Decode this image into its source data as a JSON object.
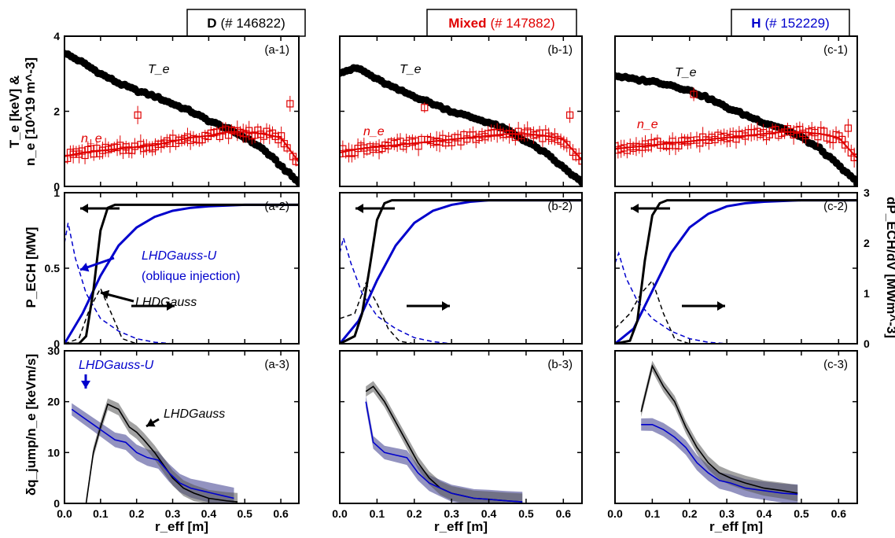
{
  "titles": [
    {
      "species": "D",
      "shot": "(# 146822)",
      "color": "#000000"
    },
    {
      "species": "Mixed",
      "shot": "(# 147882)",
      "color": "#e00000"
    },
    {
      "species": "H",
      "shot": "(# 152229)",
      "color": "#0000cc"
    }
  ],
  "axes": {
    "xlabel": "r_eff [m]",
    "row1_ylabel_line1": "T_e [keV] &",
    "row1_ylabel_line2": "n_e [10^19 m^-3]",
    "row2_ylabel": "P_ECH [MW]",
    "row2_ylabel_right": "dP_ECH/dV [MWm^-3]",
    "row3_ylabel": "δq_jump/n_e [keVm/s]",
    "x_ticks": [
      "0.0",
      "0.1",
      "0.2",
      "0.3",
      "0.4",
      "0.5",
      "0.6"
    ],
    "row1_yticks": [
      "0",
      "2",
      "4"
    ],
    "row2_yticks": [
      "0",
      "0.5",
      "1"
    ],
    "row2_right_yticks": [
      "0",
      "1",
      "2",
      "3"
    ],
    "row3_yticks": [
      "0",
      "10",
      "20",
      "30"
    ]
  },
  "labels": {
    "Te": "T_e",
    "ne": "n_e",
    "lhdgauss": "LHDGauss",
    "lhdgauss_u": "LHDGauss-U",
    "oblique": "(oblique injection)"
  },
  "panel_tags": [
    [
      "(a-1)",
      "(a-2)",
      "(a-3)"
    ],
    [
      "(b-1)",
      "(b-2)",
      "(b-3)"
    ],
    [
      "(c-1)",
      "(c-2)",
      "(c-3)"
    ]
  ],
  "colors": {
    "te": "#000000",
    "ne": "#e00000",
    "lhdgauss": "#000000",
    "lhdgauss_u": "#0000cc",
    "band_blue": "#3a3a8c",
    "band_gray": "#555555"
  },
  "chart_data": [
    {
      "type": "scatter",
      "panel": "a-1",
      "xlim": [
        0,
        0.65
      ],
      "ylim": [
        0,
        4
      ],
      "series": [
        {
          "name": "T_e",
          "x": [
            0.0,
            0.05,
            0.1,
            0.15,
            0.2,
            0.25,
            0.3,
            0.35,
            0.4,
            0.45,
            0.5,
            0.55,
            0.6,
            0.65
          ],
          "y": [
            3.55,
            3.3,
            3.0,
            2.75,
            2.55,
            2.4,
            2.2,
            2.0,
            1.75,
            1.55,
            1.3,
            1.0,
            0.55,
            0.1
          ]
        },
        {
          "name": "n_e",
          "x": [
            0.0,
            0.05,
            0.1,
            0.15,
            0.2,
            0.25,
            0.3,
            0.35,
            0.4,
            0.45,
            0.5,
            0.55,
            0.6,
            0.65
          ],
          "y": [
            0.8,
            0.9,
            0.95,
            1.0,
            1.05,
            1.1,
            1.2,
            1.3,
            1.35,
            1.45,
            1.45,
            1.4,
            1.3,
            0.65
          ]
        }
      ]
    },
    {
      "type": "scatter",
      "panel": "b-1",
      "xlim": [
        0,
        0.65
      ],
      "ylim": [
        0,
        4
      ],
      "series": [
        {
          "name": "T_e",
          "x": [
            0.0,
            0.05,
            0.1,
            0.15,
            0.2,
            0.25,
            0.3,
            0.35,
            0.4,
            0.45,
            0.5,
            0.55,
            0.6,
            0.65
          ],
          "y": [
            3.05,
            3.15,
            2.85,
            2.6,
            2.4,
            2.2,
            2.0,
            1.85,
            1.7,
            1.5,
            1.2,
            0.9,
            0.5,
            0.1
          ]
        },
        {
          "name": "n_e",
          "x": [
            0.0,
            0.05,
            0.1,
            0.15,
            0.2,
            0.25,
            0.3,
            0.35,
            0.4,
            0.45,
            0.5,
            0.55,
            0.6,
            0.65
          ],
          "y": [
            0.9,
            1.0,
            1.05,
            1.1,
            1.15,
            1.2,
            1.25,
            1.3,
            1.35,
            1.4,
            1.4,
            1.35,
            1.25,
            0.7
          ]
        }
      ]
    },
    {
      "type": "scatter",
      "panel": "c-1",
      "xlim": [
        0,
        0.65
      ],
      "ylim": [
        0,
        4
      ],
      "series": [
        {
          "name": "T_e",
          "x": [
            0.0,
            0.05,
            0.1,
            0.15,
            0.2,
            0.25,
            0.3,
            0.35,
            0.4,
            0.45,
            0.5,
            0.55,
            0.6,
            0.65
          ],
          "y": [
            2.95,
            2.85,
            2.8,
            2.7,
            2.55,
            2.35,
            2.1,
            1.9,
            1.7,
            1.55,
            1.3,
            1.0,
            0.55,
            0.1
          ]
        },
        {
          "name": "n_e",
          "x": [
            0.0,
            0.05,
            0.1,
            0.15,
            0.2,
            0.25,
            0.3,
            0.35,
            0.4,
            0.45,
            0.5,
            0.55,
            0.6,
            0.65
          ],
          "y": [
            1.0,
            1.05,
            1.1,
            1.15,
            1.2,
            1.25,
            1.3,
            1.35,
            1.4,
            1.45,
            1.45,
            1.4,
            1.3,
            0.75
          ]
        }
      ]
    },
    {
      "type": "line",
      "panel": "a-2",
      "xlim": [
        0,
        0.65
      ],
      "ylim": [
        0,
        1
      ],
      "y2lim": [
        0,
        3
      ],
      "series": [
        {
          "name": "LHDGauss P_ECH",
          "x": [
            0.0,
            0.04,
            0.06,
            0.08,
            0.1,
            0.12,
            0.14,
            0.2,
            0.65
          ],
          "y": [
            0,
            0,
            0.05,
            0.35,
            0.75,
            0.9,
            0.92,
            0.92,
            0.92
          ]
        },
        {
          "name": "LHDGauss-U P_ECH",
          "x": [
            0.0,
            0.05,
            0.1,
            0.15,
            0.2,
            0.25,
            0.3,
            0.35,
            0.4,
            0.5,
            0.65
          ],
          "y": [
            0,
            0.2,
            0.45,
            0.65,
            0.77,
            0.84,
            0.88,
            0.9,
            0.91,
            0.92,
            0.92
          ]
        },
        {
          "name": "LHDGauss dP/dV",
          "x": [
            0.0,
            0.04,
            0.07,
            0.1,
            0.13,
            0.16,
            0.2
          ],
          "y": [
            0,
            0.1,
            0.7,
            1.1,
            0.6,
            0.1,
            0
          ]
        },
        {
          "name": "LHDGauss-U dP/dV",
          "x": [
            0.0,
            0.01,
            0.03,
            0.06,
            0.1,
            0.15,
            0.2,
            0.25,
            0.3
          ],
          "y": [
            2.0,
            2.4,
            1.7,
            1.0,
            0.5,
            0.25,
            0.1,
            0.03,
            0
          ]
        }
      ]
    },
    {
      "type": "line",
      "panel": "b-2",
      "xlim": [
        0,
        0.65
      ],
      "ylim": [
        0,
        1
      ],
      "y2lim": [
        0,
        3
      ],
      "series": [
        {
          "name": "LHDGauss P_ECH",
          "x": [
            0.0,
            0.04,
            0.06,
            0.08,
            0.1,
            0.12,
            0.14,
            0.2,
            0.65
          ],
          "y": [
            0,
            0.05,
            0.2,
            0.5,
            0.82,
            0.93,
            0.95,
            0.95,
            0.95
          ]
        },
        {
          "name": "LHDGauss-U P_ECH",
          "x": [
            0.0,
            0.05,
            0.1,
            0.15,
            0.2,
            0.25,
            0.3,
            0.35,
            0.4,
            0.5,
            0.65
          ],
          "y": [
            0,
            0.15,
            0.42,
            0.65,
            0.8,
            0.88,
            0.92,
            0.94,
            0.95,
            0.95,
            0.95
          ]
        },
        {
          "name": "LHDGauss dP/dV",
          "x": [
            0.0,
            0.04,
            0.07,
            0.1,
            0.13,
            0.16,
            0.2
          ],
          "y": [
            0.5,
            0.6,
            1.2,
            0.8,
            0.3,
            0.05,
            0
          ]
        },
        {
          "name": "LHDGauss-U dP/dV",
          "x": [
            0.0,
            0.01,
            0.03,
            0.06,
            0.1,
            0.15,
            0.2,
            0.25,
            0.3
          ],
          "y": [
            1.8,
            2.1,
            1.6,
            1.0,
            0.55,
            0.3,
            0.12,
            0.04,
            0
          ]
        }
      ]
    },
    {
      "type": "line",
      "panel": "c-2",
      "xlim": [
        0,
        0.65
      ],
      "ylim": [
        0,
        1
      ],
      "y2lim": [
        0,
        3
      ],
      "series": [
        {
          "name": "LHDGauss P_ECH",
          "x": [
            0.0,
            0.04,
            0.06,
            0.08,
            0.1,
            0.12,
            0.14,
            0.2,
            0.65
          ],
          "y": [
            0,
            0.02,
            0.15,
            0.55,
            0.85,
            0.93,
            0.95,
            0.95,
            0.95
          ]
        },
        {
          "name": "LHDGauss-U P_ECH",
          "x": [
            0.0,
            0.05,
            0.1,
            0.15,
            0.2,
            0.25,
            0.3,
            0.35,
            0.4,
            0.5,
            0.65
          ],
          "y": [
            0,
            0.1,
            0.35,
            0.6,
            0.77,
            0.86,
            0.91,
            0.93,
            0.94,
            0.95,
            0.95
          ]
        },
        {
          "name": "LHDGauss dP/dV",
          "x": [
            0.0,
            0.04,
            0.07,
            0.1,
            0.13,
            0.16,
            0.2
          ],
          "y": [
            0.3,
            0.6,
            1.0,
            1.25,
            0.6,
            0.1,
            0
          ]
        },
        {
          "name": "LHDGauss-U dP/dV",
          "x": [
            0.0,
            0.01,
            0.03,
            0.06,
            0.1,
            0.15,
            0.2,
            0.25,
            0.3
          ],
          "y": [
            1.6,
            1.8,
            1.3,
            0.85,
            0.5,
            0.25,
            0.1,
            0.03,
            0
          ]
        }
      ]
    },
    {
      "type": "line",
      "panel": "a-3",
      "xlim": [
        0,
        0.65
      ],
      "ylim": [
        0,
        30
      ],
      "series": [
        {
          "name": "LHDGauss",
          "x": [
            0.06,
            0.08,
            0.1,
            0.12,
            0.15,
            0.18,
            0.2,
            0.22,
            0.25,
            0.28,
            0.3,
            0.33,
            0.36,
            0.4,
            0.45,
            0.48
          ],
          "y": [
            0,
            10,
            15,
            19.5,
            18.5,
            15,
            14,
            12.5,
            10,
            7,
            5,
            3,
            2,
            1,
            0.5,
            0.3
          ]
        },
        {
          "name": "LHDGauss-U",
          "x": [
            0.02,
            0.05,
            0.08,
            0.11,
            0.14,
            0.17,
            0.2,
            0.23,
            0.26,
            0.29,
            0.32,
            0.35,
            0.38,
            0.41,
            0.44,
            0.47
          ],
          "y": [
            18.5,
            17,
            15.5,
            14,
            12.5,
            12,
            10,
            9,
            8.5,
            6,
            4,
            3,
            2.5,
            2,
            1.5,
            1
          ]
        }
      ]
    },
    {
      "type": "line",
      "panel": "b-3",
      "xlim": [
        0,
        0.65
      ],
      "ylim": [
        0,
        30
      ],
      "series": [
        {
          "name": "LHDGauss",
          "x": [
            0.07,
            0.09,
            0.12,
            0.15,
            0.18,
            0.21,
            0.24,
            0.27,
            0.3,
            0.33,
            0.36,
            0.4,
            0.45,
            0.49
          ],
          "y": [
            22,
            23,
            20,
            16,
            12,
            8,
            5,
            3,
            2,
            1.5,
            1,
            0.8,
            0.5,
            0.3
          ]
        },
        {
          "name": "LHDGauss-U",
          "x": [
            0.07,
            0.09,
            0.12,
            0.15,
            0.18,
            0.21,
            0.24,
            0.27,
            0.3,
            0.33,
            0.36,
            0.4,
            0.45,
            0.49
          ],
          "y": [
            20,
            12,
            10,
            9.5,
            9,
            6,
            4,
            3,
            2,
            1.5,
            1,
            0.8,
            0.5,
            0.3
          ]
        }
      ]
    },
    {
      "type": "line",
      "panel": "c-3",
      "xlim": [
        0,
        0.65
      ],
      "ylim": [
        0,
        30
      ],
      "series": [
        {
          "name": "LHDGauss",
          "x": [
            0.07,
            0.1,
            0.13,
            0.16,
            0.19,
            0.22,
            0.25,
            0.28,
            0.31,
            0.35,
            0.4,
            0.45,
            0.49
          ],
          "y": [
            18,
            27,
            23,
            20,
            15,
            11,
            8,
            6,
            5,
            4,
            3,
            2.5,
            2
          ]
        },
        {
          "name": "LHDGauss-U",
          "x": [
            0.07,
            0.1,
            0.13,
            0.16,
            0.19,
            0.22,
            0.25,
            0.28,
            0.31,
            0.35,
            0.4,
            0.45,
            0.49
          ],
          "y": [
            15.5,
            15.5,
            14.5,
            13,
            11,
            8,
            6,
            4.5,
            4,
            3,
            2.5,
            2,
            1.8
          ]
        }
      ]
    }
  ]
}
